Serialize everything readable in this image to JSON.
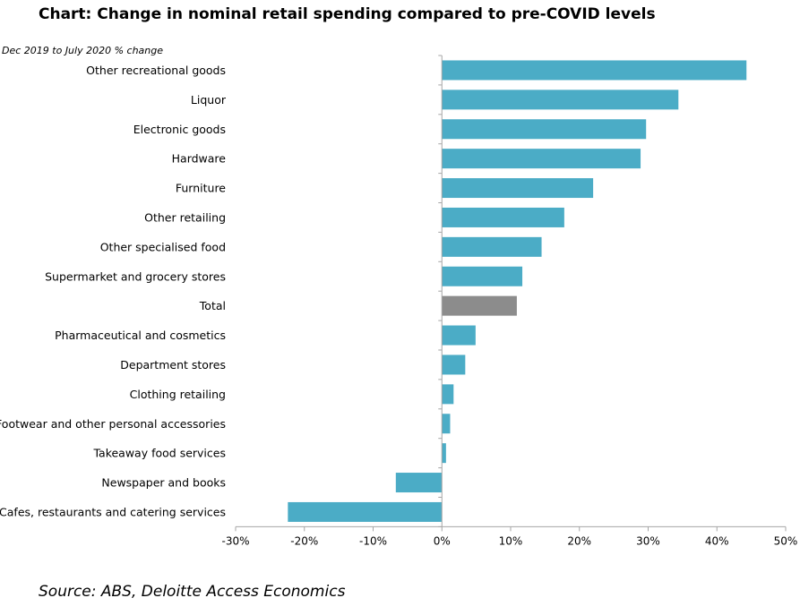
{
  "chart_data": {
    "type": "bar",
    "orientation": "horizontal",
    "title": "Chart: Change in nominal retail spending compared to pre-COVID levels",
    "subtitle": "Dec 2019 to July 2020 % change",
    "categories": [
      "Other recreational goods",
      "Liquor",
      "Electronic goods",
      "Hardware",
      "Furniture",
      "Other retailing",
      "Other specialised food",
      "Supermarket and grocery stores",
      "Total",
      "Pharmaceutical and cosmetics",
      "Department stores",
      "Clothing retailing",
      "Footwear and other personal accessories",
      "Takeaway food services",
      "Newspaper and books",
      "Cafes, restaurants and catering services"
    ],
    "values": [
      44.3,
      34.4,
      29.7,
      28.9,
      22.0,
      17.8,
      14.5,
      11.7,
      10.9,
      4.9,
      3.4,
      1.7,
      1.2,
      0.6,
      -6.7,
      -22.4
    ],
    "highlight_category": "Total",
    "xlim": [
      -30,
      50
    ],
    "xticks": [
      -30,
      -20,
      -10,
      0,
      10,
      20,
      30,
      40,
      50
    ],
    "xtick_labels": [
      "-30%",
      "-20%",
      "-10%",
      "0%",
      "10%",
      "20%",
      "30%",
      "40%",
      "50%"
    ],
    "xlabel": "",
    "ylabel": "",
    "grid": false,
    "colors": {
      "bar": "#4bacc6",
      "highlight": "#8c8c8c",
      "axis": "#a6a6a6"
    }
  },
  "source": "Source: ABS, Deloitte Access Economics"
}
